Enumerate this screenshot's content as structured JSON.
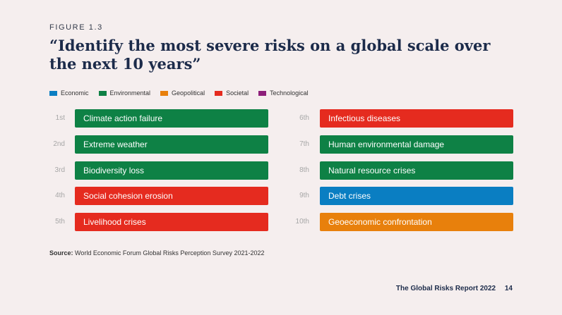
{
  "figure_label": "FIGURE 1.3",
  "chart_data": {
    "type": "table",
    "title": "“Identify the most severe risks on a global scale over the next 10 years”",
    "legend": [
      {
        "name": "Economic",
        "color": "#0a7ec2"
      },
      {
        "name": "Environmental",
        "color": "#0e8145"
      },
      {
        "name": "Geopolitical",
        "color": "#e8800c"
      },
      {
        "name": "Societal",
        "color": "#e52b1f"
      },
      {
        "name": "Technological",
        "color": "#8d1f7a"
      }
    ],
    "rankings": [
      {
        "rank": "1st",
        "risk": "Climate action failure",
        "category": "Environmental"
      },
      {
        "rank": "2nd",
        "risk": "Extreme weather",
        "category": "Environmental"
      },
      {
        "rank": "3rd",
        "risk": "Biodiversity loss",
        "category": "Environmental"
      },
      {
        "rank": "4th",
        "risk": "Social cohesion erosion",
        "category": "Societal"
      },
      {
        "rank": "5th",
        "risk": "Livelihood crises",
        "category": "Societal"
      },
      {
        "rank": "6th",
        "risk": "Infectious diseases",
        "category": "Societal"
      },
      {
        "rank": "7th",
        "risk": "Human environmental damage",
        "category": "Environmental"
      },
      {
        "rank": "8th",
        "risk": "Natural resource crises",
        "category": "Environmental"
      },
      {
        "rank": "9th",
        "risk": "Debt crises",
        "category": "Economic"
      },
      {
        "rank": "10th",
        "risk": "Geoeconomic confrontation",
        "category": "Geopolitical"
      }
    ]
  },
  "source": {
    "label": "Source:",
    "text": "World Economic Forum Global Risks Perception Survey 2021-2022"
  },
  "footer": {
    "report": "The Global Risks Report 2022",
    "page": "14"
  }
}
